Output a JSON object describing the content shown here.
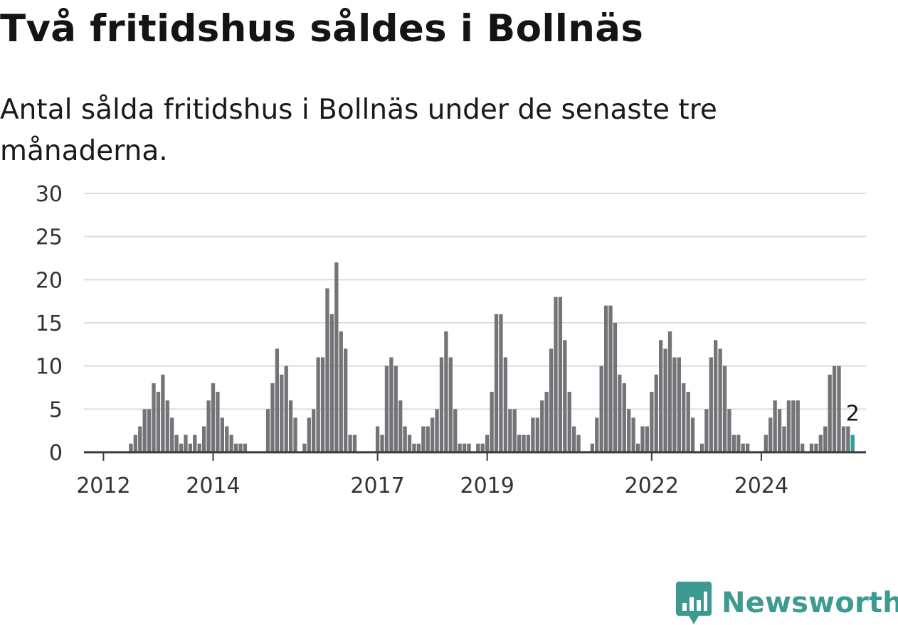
{
  "title": "Två fritidshus såldes i Bollnäs",
  "subtitle": "Antal sålda fritidshus i Bollnäs under de senaste tre månaderna.",
  "brand": {
    "name": "Newsworthy",
    "color": "#3d9a91",
    "icon": "newsworthy-logo-icon"
  },
  "chart_data": {
    "type": "bar",
    "title": "Två fritidshus såldes i Bollnäs",
    "subtitle": "Antal sålda fritidshus i Bollnäs under de senaste tre månaderna.",
    "start_month": "2011-10",
    "frequency": "monthly",
    "values": [
      0,
      0,
      0,
      0,
      0,
      0,
      0,
      0,
      0,
      1,
      2,
      3,
      5,
      5,
      8,
      7,
      9,
      6,
      4,
      2,
      1,
      2,
      1,
      2,
      1,
      3,
      6,
      8,
      7,
      4,
      3,
      2,
      1,
      1,
      1,
      0,
      0,
      0,
      0,
      5,
      8,
      12,
      9,
      10,
      6,
      4,
      0,
      1,
      4,
      5,
      11,
      11,
      19,
      16,
      22,
      14,
      12,
      2,
      2,
      0,
      0,
      0,
      0,
      3,
      2,
      10,
      11,
      10,
      6,
      3,
      2,
      1,
      1,
      3,
      3,
      4,
      5,
      11,
      14,
      11,
      5,
      1,
      1,
      1,
      0,
      1,
      1,
      2,
      7,
      16,
      16,
      11,
      5,
      5,
      2,
      2,
      2,
      4,
      4,
      6,
      7,
      12,
      18,
      18,
      13,
      7,
      3,
      2,
      0,
      0,
      1,
      4,
      10,
      17,
      17,
      15,
      9,
      8,
      5,
      4,
      1,
      3,
      3,
      7,
      9,
      13,
      12,
      14,
      11,
      11,
      8,
      7,
      4,
      0,
      1,
      5,
      11,
      13,
      12,
      10,
      5,
      2,
      2,
      1,
      1,
      0,
      0,
      0,
      2,
      4,
      6,
      5,
      3,
      6,
      6,
      6,
      1,
      0,
      1,
      1,
      2,
      3,
      9,
      10,
      10,
      3,
      3,
      2
    ],
    "highlight_last": true,
    "highlight_label": "2",
    "x_tick_labels": [
      {
        "label": "2012",
        "month": "2012-01"
      },
      {
        "label": "2014",
        "month": "2014-01"
      },
      {
        "label": "2017",
        "month": "2017-01"
      },
      {
        "label": "2019",
        "month": "2019-01"
      },
      {
        "label": "2022",
        "month": "2022-01"
      },
      {
        "label": "2024",
        "month": "2024-01"
      }
    ],
    "y_ticks": [
      0,
      5,
      10,
      15,
      20,
      25,
      30
    ],
    "ylim": [
      0,
      30
    ],
    "grid": true,
    "colors": {
      "bar": "#747378",
      "highlight": "#2aa198",
      "grid": "#dddddd",
      "axis": "#3a3a3a",
      "tick_text": "#333333"
    }
  }
}
